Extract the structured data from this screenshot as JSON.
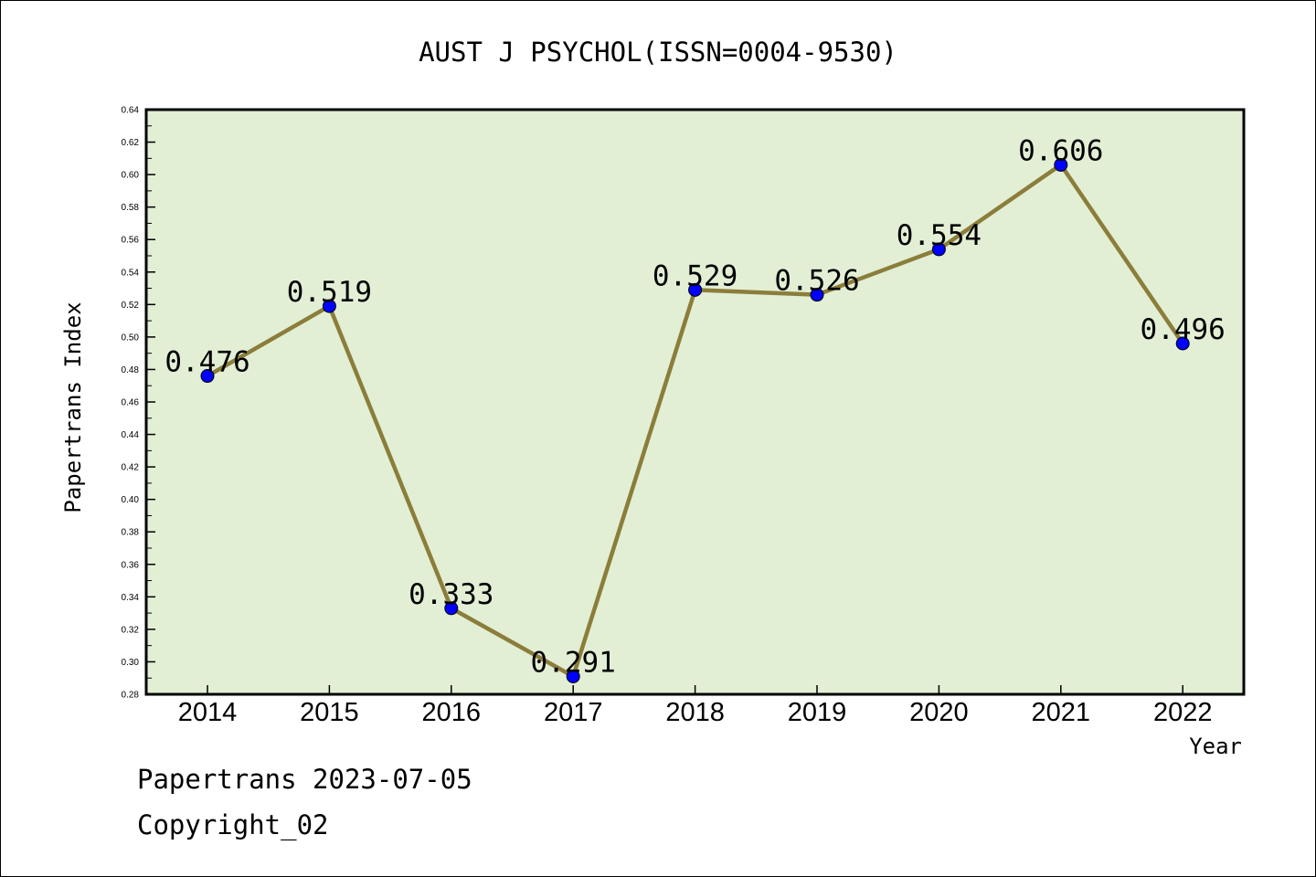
{
  "chart_data": {
    "type": "line",
    "title": "AUST J PSYCHOL(ISSN=0004-9530)",
    "xlabel": "Year",
    "ylabel": "Papertrans Index",
    "x": [
      "2014",
      "2015",
      "2016",
      "2017",
      "2018",
      "2019",
      "2020",
      "2021",
      "2022"
    ],
    "values": [
      0.476,
      0.519,
      0.333,
      0.291,
      0.529,
      0.526,
      0.554,
      0.606,
      0.496
    ],
    "data_labels": [
      "0.476",
      "0.519",
      "0.333",
      "0.291",
      "0.529",
      "0.526",
      "0.554",
      "0.606",
      "0.496"
    ],
    "ylim": [
      0.28,
      0.64
    ],
    "yticks": [
      "0.28",
      "0.30",
      "0.32",
      "0.34",
      "0.36",
      "0.38",
      "0.40",
      "0.42",
      "0.44",
      "0.46",
      "0.48",
      "0.50",
      "0.52",
      "0.54",
      "0.56",
      "0.58",
      "0.60",
      "0.62",
      "0.64"
    ],
    "grid": false,
    "colors": {
      "plot_background": "#e2efd5",
      "line": "#8b7d3a",
      "marker": "#0000ff"
    }
  },
  "footer": {
    "line1": "Papertrans 2023-07-05",
    "line2": "Copyright_02"
  }
}
